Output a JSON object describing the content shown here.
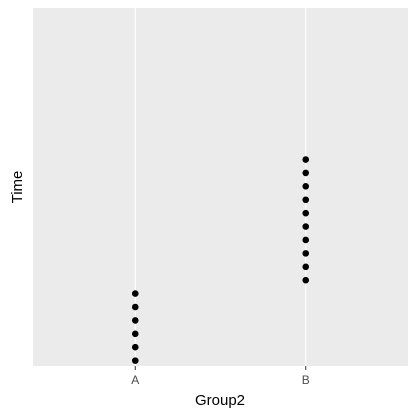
{
  "chart_data": {
    "type": "scatter",
    "x_label": "Group2",
    "y_label": "Time",
    "categories": [
      "A",
      "B"
    ],
    "values": [
      [
        1,
        2,
        3,
        4,
        5,
        6
      ],
      [
        7,
        8,
        9,
        10,
        11,
        12,
        13,
        14,
        15,
        16
      ]
    ],
    "color": "#000000",
    "ylim": [
      0.6,
      27.3
    ],
    "grid": true
  }
}
